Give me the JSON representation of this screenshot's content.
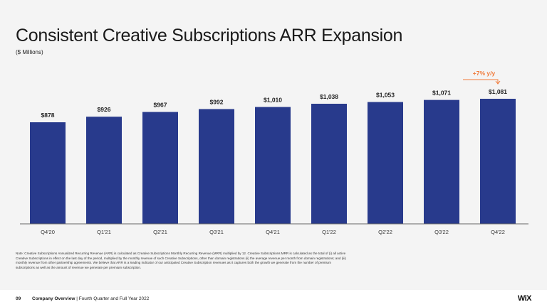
{
  "slide": {
    "title": "Consistent Creative Subscriptions ARR Expansion",
    "subtitle": "($ Millions)",
    "note": "Note: Creative Subscriptions Annualized Recurring Revenue (ARR) is calculated as Creative Subscriptions Monthly Recurring Revenue (MRR) multiplied by 12. Creative Subscriptions MRR is calculated as the total of (i) all active Creative Subscriptions in effect on the last day of the period, multiplied by the monthly revenue of such Creative Subscriptions, other than domain registrations (ii) the average revenue per month from domain registrations; and (iii) monthly revenue from other partnership agreements. We believe that ARR is a leading indicator of our anticipated Creative Subscription revenues as it captures both the growth we generate from the number of premium subscriptions as well as the amount of revenue we generate per premium subscription.",
    "footer": {
      "page": "09",
      "section": "Company Overview",
      "separator": "|",
      "period": "Fourth Quarter and Full Year 2022"
    },
    "logo": "WiX"
  },
  "chart_data": {
    "type": "bar",
    "title": "Consistent Creative Subscriptions ARR Expansion",
    "ylabel": "($ Millions)",
    "categories": [
      "Q4'20",
      "Q1'21",
      "Q2'21",
      "Q3'21",
      "Q4'21",
      "Q1'22",
      "Q2'22",
      "Q3'22",
      "Q4'22"
    ],
    "values": [
      878,
      926,
      967,
      992,
      1010,
      1038,
      1053,
      1071,
      1081
    ],
    "labels": [
      "$878",
      "$926",
      "$967",
      "$992",
      "$1,010",
      "$1,038",
      "$1,053",
      "$1,071",
      "$1,081"
    ],
    "ylim": [
      0,
      1081
    ],
    "grid": false,
    "annotation": {
      "text": "+7% y/y",
      "target": "Q4'22"
    },
    "colors": {
      "bar": "#283a8c",
      "annotation": "#f07a3a",
      "axis": "#666666"
    }
  }
}
